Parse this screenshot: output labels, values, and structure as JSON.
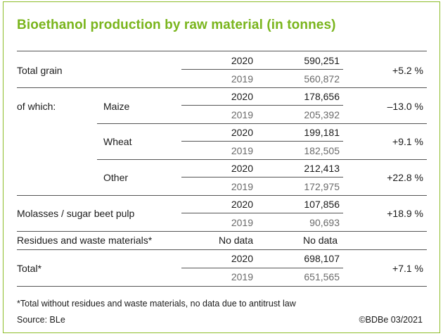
{
  "title": "Bioethanol production by raw material (in tonnes)",
  "rows": {
    "total_grain": {
      "label": "Total grain",
      "year_a": "2020",
      "value_a": "590,251",
      "year_b": "2019",
      "value_b": "560,872",
      "change": "+5.2 %"
    },
    "of_which_label": "of which:",
    "maize": {
      "label": "Maize",
      "year_a": "2020",
      "value_a": "178,656",
      "year_b": "2019",
      "value_b": "205,392",
      "change": "–13.0 %"
    },
    "wheat": {
      "label": "Wheat",
      "year_a": "2020",
      "value_a": "199,181",
      "year_b": "2019",
      "value_b": "182,505",
      "change": "+9.1 %"
    },
    "other": {
      "label": "Other",
      "year_a": "2020",
      "value_a": "212,413",
      "year_b": "2019",
      "value_b": "172,975",
      "change": "+22.8 %"
    },
    "molasses": {
      "label": "Molasses / sugar beet pulp",
      "year_a": "2020",
      "value_a": "107,856",
      "year_b": "2019",
      "value_b": "90,693",
      "change": "+18.9 %"
    },
    "residues": {
      "label": "Residues and waste materials*",
      "col_a": "No data",
      "col_b": "No data"
    },
    "total": {
      "label": "Total*",
      "year_a": "2020",
      "value_a": "698,107",
      "year_b": "2019",
      "value_b": "651,565",
      "change": "+7.1 %"
    }
  },
  "footnote": "*Total without residues and waste materials, no data due to antitrust law",
  "source": "Source: BLe",
  "copyright": "©BDBe 03/2021"
}
